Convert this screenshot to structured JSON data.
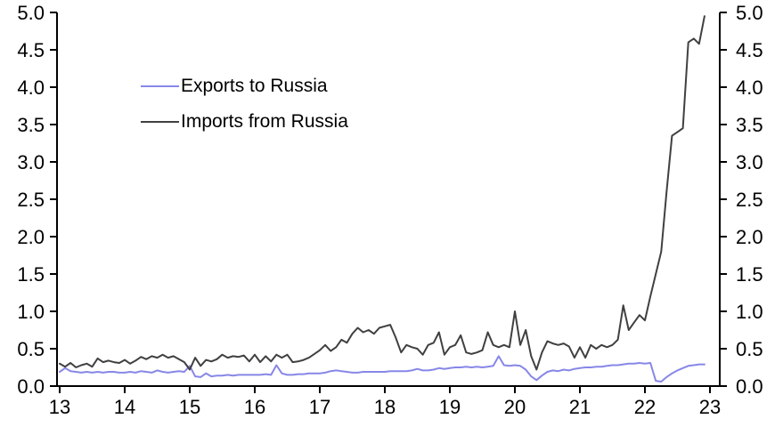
{
  "chart_data": {
    "type": "line",
    "title": "",
    "x_tick_labels": [
      "13",
      "14",
      "15",
      "16",
      "17",
      "18",
      "19",
      "20",
      "21",
      "22",
      "23"
    ],
    "x_range_years": [
      13,
      23
    ],
    "points_per_year": 12,
    "ylim": [
      0,
      5
    ],
    "y_tick_step": 0.5,
    "y_tick_labels": [
      "0.0",
      "0.5",
      "1.0",
      "1.5",
      "2.0",
      "2.5",
      "3.0",
      "3.5",
      "4.0",
      "4.5",
      "5.0"
    ],
    "grid": false,
    "dual_y_axis": true,
    "legend_position": "inside-top-left",
    "axes_color": "#000000",
    "background_color": "#ffffff",
    "series": [
      {
        "name": "Exports to Russia",
        "color": "#8787e8",
        "values": [
          0.19,
          0.24,
          0.2,
          0.19,
          0.18,
          0.19,
          0.18,
          0.19,
          0.18,
          0.19,
          0.19,
          0.18,
          0.18,
          0.19,
          0.18,
          0.2,
          0.19,
          0.18,
          0.21,
          0.19,
          0.18,
          0.19,
          0.2,
          0.19,
          0.27,
          0.13,
          0.12,
          0.17,
          0.13,
          0.14,
          0.14,
          0.15,
          0.14,
          0.15,
          0.15,
          0.15,
          0.15,
          0.15,
          0.16,
          0.15,
          0.28,
          0.17,
          0.15,
          0.15,
          0.16,
          0.16,
          0.17,
          0.17,
          0.17,
          0.18,
          0.2,
          0.21,
          0.2,
          0.19,
          0.18,
          0.18,
          0.19,
          0.19,
          0.19,
          0.19,
          0.19,
          0.2,
          0.2,
          0.2,
          0.2,
          0.21,
          0.23,
          0.21,
          0.21,
          0.22,
          0.24,
          0.23,
          0.24,
          0.25,
          0.25,
          0.26,
          0.25,
          0.26,
          0.25,
          0.26,
          0.27,
          0.4,
          0.28,
          0.27,
          0.28,
          0.27,
          0.22,
          0.13,
          0.08,
          0.14,
          0.19,
          0.21,
          0.2,
          0.22,
          0.21,
          0.23,
          0.24,
          0.25,
          0.25,
          0.26,
          0.26,
          0.27,
          0.28,
          0.28,
          0.29,
          0.3,
          0.3,
          0.31,
          0.3,
          0.31,
          0.07,
          0.06,
          0.12,
          0.17,
          0.21,
          0.24,
          0.27,
          0.28,
          0.29,
          0.29
        ]
      },
      {
        "name": "Imports from Russia",
        "color": "#404040",
        "values": [
          0.3,
          0.26,
          0.31,
          0.25,
          0.28,
          0.3,
          0.26,
          0.37,
          0.32,
          0.34,
          0.32,
          0.31,
          0.35,
          0.3,
          0.34,
          0.39,
          0.36,
          0.4,
          0.38,
          0.42,
          0.38,
          0.4,
          0.36,
          0.32,
          0.22,
          0.38,
          0.27,
          0.35,
          0.33,
          0.36,
          0.42,
          0.38,
          0.4,
          0.39,
          0.41,
          0.33,
          0.42,
          0.32,
          0.4,
          0.33,
          0.42,
          0.38,
          0.42,
          0.32,
          0.33,
          0.35,
          0.38,
          0.43,
          0.48,
          0.55,
          0.47,
          0.52,
          0.62,
          0.58,
          0.7,
          0.78,
          0.72,
          0.75,
          0.7,
          0.78,
          0.8,
          0.82,
          0.65,
          0.45,
          0.55,
          0.52,
          0.5,
          0.42,
          0.55,
          0.58,
          0.72,
          0.42,
          0.52,
          0.55,
          0.68,
          0.45,
          0.43,
          0.45,
          0.48,
          0.72,
          0.55,
          0.52,
          0.55,
          0.52,
          1.0,
          0.55,
          0.75,
          0.4,
          0.22,
          0.45,
          0.6,
          0.57,
          0.55,
          0.57,
          0.53,
          0.38,
          0.52,
          0.38,
          0.55,
          0.5,
          0.55,
          0.52,
          0.55,
          0.62,
          1.08,
          0.75,
          0.85,
          0.95,
          0.88,
          1.2,
          1.5,
          1.8,
          2.6,
          3.35,
          3.4,
          3.45,
          4.6,
          4.65,
          4.58,
          4.95
        ]
      }
    ]
  }
}
